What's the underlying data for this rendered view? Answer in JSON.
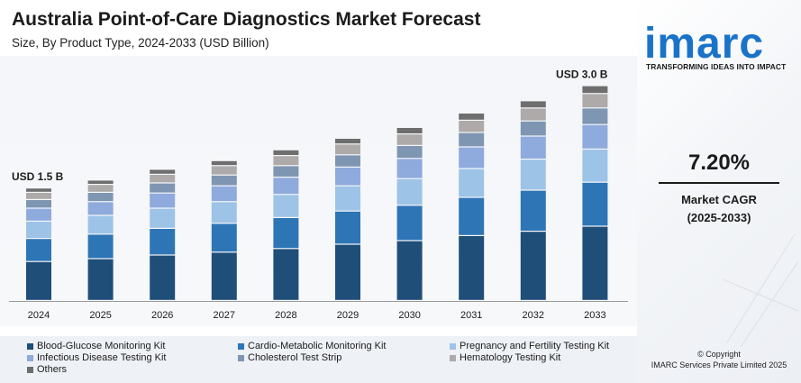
{
  "header": {
    "title": "Australia Point-of-Care Diagnostics Market Forecast",
    "subtitle": "Size, By Product Type, 2024-2033 (USD Billion)"
  },
  "sidebar": {
    "brand": "imarc",
    "tagline": "TRANSFORMING IDEAS INTO IMPACT",
    "cagr_value": "7.20%",
    "cagr_label": "Market CAGR",
    "cagr_period": "(2025-2033)",
    "copyright": "© Copyright",
    "copyright_owner": "IMARC Services Private Limited 2025",
    "brand_color": "#1a73c9"
  },
  "chart_data": {
    "type": "bar",
    "stacked": true,
    "categories": [
      "2024",
      "2025",
      "2026",
      "2027",
      "2028",
      "2029",
      "2030",
      "2031",
      "2032",
      "2033"
    ],
    "annotations": [
      {
        "category": "2024",
        "text": "USD 1.5 B"
      },
      {
        "category": "2033",
        "text": "USD 3.0 B"
      }
    ],
    "series": [
      {
        "name": "Blood-Glucose Monitoring Kit",
        "color": "#1f4e79",
        "values": [
          0.54,
          0.58,
          0.63,
          0.67,
          0.72,
          0.78,
          0.83,
          0.9,
          0.96,
          1.03
        ]
      },
      {
        "name": "Cardio-Metabolic Monitoring Kit",
        "color": "#2e75b6",
        "values": [
          0.32,
          0.34,
          0.37,
          0.4,
          0.43,
          0.46,
          0.49,
          0.53,
          0.57,
          0.61
        ]
      },
      {
        "name": "Pregnancy and Fertility Testing Kit",
        "color": "#9dc3e6",
        "values": [
          0.24,
          0.26,
          0.28,
          0.3,
          0.32,
          0.35,
          0.37,
          0.4,
          0.43,
          0.46
        ]
      },
      {
        "name": "Infectious Disease Testing Kit",
        "color": "#8faadc",
        "values": [
          0.18,
          0.19,
          0.21,
          0.22,
          0.24,
          0.26,
          0.28,
          0.3,
          0.32,
          0.34
        ]
      },
      {
        "name": "Cholesterol Test Strip",
        "color": "#7f96b2",
        "values": [
          0.12,
          0.13,
          0.14,
          0.15,
          0.16,
          0.17,
          0.18,
          0.2,
          0.21,
          0.23
        ]
      },
      {
        "name": "Hematology Testing Kit",
        "color": "#aeaaaa",
        "values": [
          0.1,
          0.11,
          0.12,
          0.13,
          0.14,
          0.15,
          0.16,
          0.17,
          0.18,
          0.2
        ]
      },
      {
        "name": "Others",
        "color": "#6e6e6e",
        "values": [
          0.06,
          0.06,
          0.07,
          0.07,
          0.08,
          0.08,
          0.09,
          0.1,
          0.1,
          0.11
        ]
      }
    ],
    "ylim": [
      0,
      3.1
    ],
    "grid": false,
    "legend_position": "bottom"
  }
}
